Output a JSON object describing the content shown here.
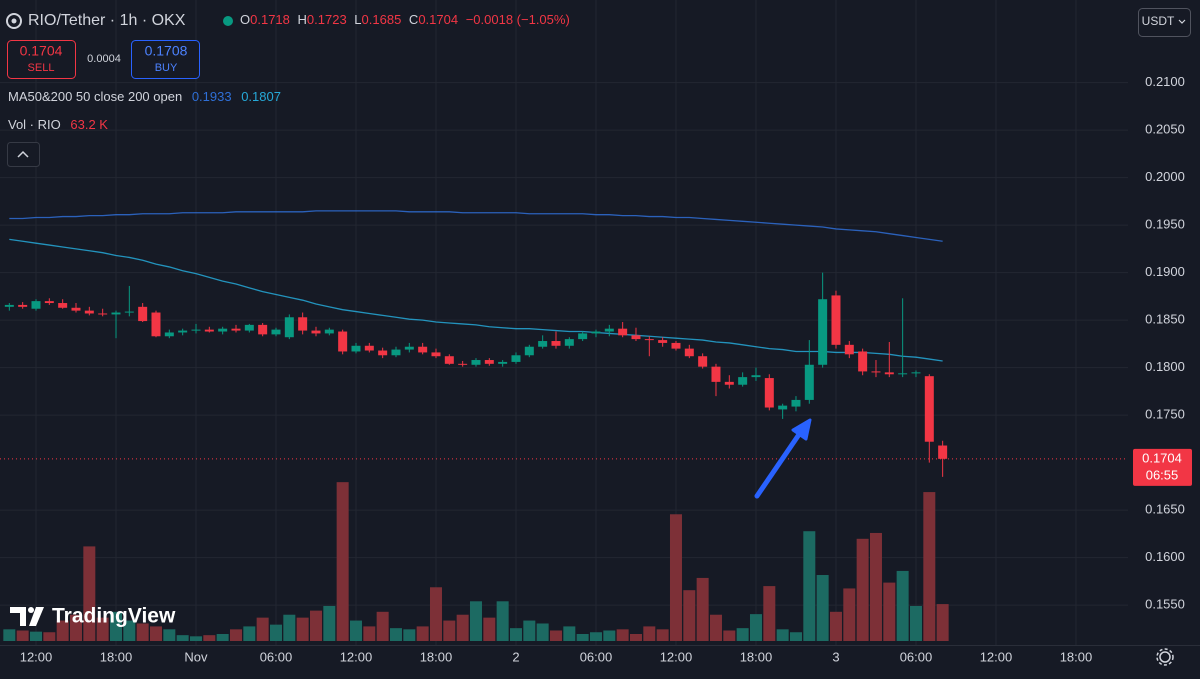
{
  "chart_data": {
    "type": "candlestick",
    "title": "RIO/Tether · 1h · OKX",
    "legend_labels": [
      "O",
      "H",
      "L",
      "C"
    ],
    "change": "−0.0018 (−1.05%)",
    "trade": {
      "sell_price": "0.1704",
      "sell": "SELL",
      "spread": "0.0004",
      "buy_price": "0.1708",
      "buy": "BUY"
    },
    "indicator_label": "MA50&200 50 close 200 open",
    "volume_label": "Vol · RIO",
    "volume_last_label": "63.2 K",
    "currency": "USDT",
    "countdown": "06:55",
    "watermark": "TradingView",
    "up_color": "#089981",
    "down_color": "#f23645",
    "volume_up_color": "#1c6a62",
    "volume_down_color": "#7d3037",
    "grid": true,
    "categories": [
      null,
      null,
      "12:00",
      null,
      null,
      null,
      null,
      null,
      "18:00",
      null,
      null,
      null,
      null,
      null,
      "Nov",
      null,
      null,
      null,
      null,
      null,
      "06:00",
      null,
      null,
      null,
      null,
      null,
      "12:00",
      null,
      null,
      null,
      null,
      null,
      "18:00",
      null,
      null,
      null,
      null,
      null,
      "2",
      null,
      null,
      null,
      null,
      null,
      "06:00",
      null,
      null,
      null,
      null,
      null,
      "12:00",
      null,
      null,
      null,
      null,
      null,
      "18:00",
      null,
      null,
      null,
      null,
      null,
      "3",
      null,
      null,
      null,
      null,
      null,
      "06:00",
      null,
      null,
      null,
      null,
      null,
      "12:00",
      null,
      null,
      null,
      null,
      null,
      "18:00"
    ],
    "ohlc": {
      "open": [
        0.1864,
        0.1866,
        0.1862,
        0.187,
        0.1868,
        0.1863,
        0.186,
        0.1857,
        0.1856,
        0.1858,
        0.1864,
        0.1858,
        0.1833,
        0.1837,
        0.1839,
        0.184,
        0.1838,
        0.1841,
        0.1839,
        0.1845,
        0.1835,
        0.1832,
        0.1853,
        0.1839,
        0.1836,
        0.1838,
        0.1817,
        0.1823,
        0.1818,
        0.1813,
        0.1819,
        0.1822,
        0.1816,
        0.1812,
        0.1804,
        0.1803,
        0.1808,
        0.1804,
        0.1806,
        0.1813,
        0.1822,
        0.1828,
        0.1823,
        0.183,
        0.1836,
        0.1838,
        0.1841,
        0.1834,
        0.183,
        0.1829,
        0.1826,
        0.182,
        0.1812,
        0.1801,
        0.1785,
        0.1782,
        0.179,
        0.1789,
        0.1756,
        0.1759,
        0.1766,
        0.1803,
        0.1876,
        0.1824,
        0.1817,
        0.1796,
        0.1795,
        0.1793,
        0.1794,
        0.1791,
        0.1718,
        null,
        null,
        null,
        null,
        null,
        null,
        null,
        null,
        null,
        null
      ],
      "high": [
        0.1868,
        0.1869,
        0.1872,
        0.1873,
        0.1872,
        0.1868,
        0.1864,
        0.1862,
        0.186,
        0.1886,
        0.1868,
        0.186,
        0.184,
        0.1841,
        0.1846,
        0.1843,
        0.1843,
        0.1845,
        0.1846,
        0.1847,
        0.1842,
        0.1856,
        0.1858,
        0.1843,
        0.1842,
        0.184,
        0.1826,
        0.1826,
        0.1821,
        0.1822,
        0.1826,
        0.1826,
        0.182,
        0.1814,
        0.1807,
        0.181,
        0.181,
        0.1808,
        0.1816,
        0.1824,
        0.1834,
        0.1838,
        0.1832,
        0.1838,
        0.184,
        0.1845,
        0.1848,
        0.1842,
        0.1833,
        0.1832,
        0.1828,
        0.1824,
        0.1815,
        0.1804,
        0.1792,
        0.1795,
        0.18,
        0.1793,
        0.1762,
        0.177,
        0.1829,
        0.19,
        0.1881,
        0.1828,
        0.182,
        0.1808,
        0.1827,
        0.1873,
        0.1797,
        0.1793,
        0.1723,
        null,
        null,
        null,
        null,
        null,
        null,
        null,
        null,
        null,
        null
      ],
      "low": [
        0.186,
        0.1862,
        0.186,
        0.1866,
        0.1862,
        0.1858,
        0.1855,
        0.1854,
        0.1831,
        0.1854,
        0.1848,
        0.1832,
        0.1831,
        0.1834,
        0.1836,
        0.1837,
        0.1835,
        0.1837,
        0.1837,
        0.1833,
        0.1833,
        0.183,
        0.1835,
        0.1833,
        0.1834,
        0.1814,
        0.1815,
        0.1816,
        0.181,
        0.1811,
        0.1816,
        0.1814,
        0.181,
        0.1803,
        0.1801,
        0.1801,
        0.1802,
        0.1801,
        0.1804,
        0.1811,
        0.182,
        0.182,
        0.182,
        0.1828,
        0.1832,
        0.1833,
        0.1832,
        0.1828,
        0.1812,
        0.1822,
        0.1818,
        0.181,
        0.1799,
        0.177,
        0.1778,
        0.178,
        0.1786,
        0.1755,
        0.1746,
        0.1754,
        0.1762,
        0.18,
        0.182,
        0.181,
        0.1792,
        0.179,
        0.179,
        0.179,
        0.179,
        0.17,
        0.1685,
        null,
        null,
        null,
        null,
        null,
        null,
        null,
        null,
        null,
        null
      ],
      "close": [
        0.1866,
        0.1864,
        0.187,
        0.1868,
        0.1863,
        0.186,
        0.1857,
        0.1856,
        0.1858,
        0.1859,
        0.1849,
        0.1833,
        0.1837,
        0.1839,
        0.184,
        0.1838,
        0.1841,
        0.1839,
        0.1845,
        0.1835,
        0.184,
        0.1853,
        0.1839,
        0.1836,
        0.184,
        0.1817,
        0.1823,
        0.1818,
        0.1813,
        0.1819,
        0.1822,
        0.1816,
        0.1812,
        0.1804,
        0.1803,
        0.1808,
        0.1804,
        0.1806,
        0.1813,
        0.1822,
        0.1828,
        0.1823,
        0.183,
        0.1836,
        0.1838,
        0.1841,
        0.1834,
        0.183,
        0.1829,
        0.1826,
        0.182,
        0.1812,
        0.1801,
        0.1785,
        0.1782,
        0.179,
        0.1792,
        0.1758,
        0.176,
        0.1766,
        0.1803,
        0.1872,
        0.1824,
        0.1814,
        0.1796,
        0.1795,
        0.1793,
        0.1794,
        0.1795,
        0.1722,
        0.1704,
        null,
        null,
        null,
        null,
        null,
        null,
        null,
        null,
        null,
        null
      ]
    },
    "volume": {
      "values": [
        20000,
        18000,
        16000,
        15000,
        35000,
        45000,
        162000,
        40000,
        50000,
        35000,
        30000,
        25000,
        20000,
        10000,
        8000,
        10000,
        12000,
        20000,
        25000,
        40000,
        28000,
        45000,
        40000,
        52000,
        60000,
        272000,
        35000,
        25000,
        50000,
        22000,
        20000,
        25000,
        92000,
        35000,
        45000,
        68000,
        40000,
        68000,
        22000,
        35000,
        30000,
        18000,
        25000,
        12000,
        15000,
        18000,
        20000,
        12000,
        25000,
        20000,
        217000,
        87000,
        108000,
        45000,
        18000,
        22000,
        46000,
        94000,
        20000,
        15000,
        188000,
        113000,
        50000,
        90000,
        175000,
        185000,
        100000,
        120000,
        60000,
        255000,
        63200,
        null,
        null,
        null,
        null,
        null,
        null,
        null,
        null,
        null,
        null
      ],
      "ylim": [
        0,
        500000
      ]
    },
    "series": [
      {
        "name": "MA200",
        "color": "#2f6fd6",
        "values": [
          0.1957,
          0.1957,
          0.1958,
          0.1958,
          0.1959,
          0.1959,
          0.196,
          0.196,
          0.1961,
          0.1961,
          0.1962,
          0.1962,
          0.1962,
          0.1963,
          0.1963,
          0.1963,
          0.1963,
          0.1964,
          0.1964,
          0.1964,
          0.1964,
          0.1964,
          0.1964,
          0.1965,
          0.1965,
          0.1965,
          0.1965,
          0.1965,
          0.1965,
          0.1965,
          0.1964,
          0.1964,
          0.1964,
          0.1964,
          0.1963,
          0.1963,
          0.1963,
          0.1963,
          0.1963,
          0.1962,
          0.1962,
          0.1962,
          0.1962,
          0.1962,
          0.1961,
          0.1961,
          0.196,
          0.196,
          0.1959,
          0.1959,
          0.1958,
          0.1958,
          0.1957,
          0.1956,
          0.1955,
          0.1954,
          0.1953,
          0.1952,
          0.1951,
          0.195,
          0.1949,
          0.1948,
          0.1946,
          0.1945,
          0.1944,
          0.1943,
          0.1941,
          0.1939,
          0.1937,
          0.1935,
          0.1933,
          null,
          null,
          null,
          null,
          null,
          null,
          null,
          null,
          null,
          null
        ]
      },
      {
        "name": "MA50",
        "color": "#26a9d8",
        "values": [
          0.1935,
          0.1933,
          0.1931,
          0.1929,
          0.1927,
          0.1925,
          0.1923,
          0.1921,
          0.1918,
          0.1916,
          0.1913,
          0.1909,
          0.1906,
          0.1902,
          0.1899,
          0.1895,
          0.1891,
          0.1888,
          0.1884,
          0.188,
          0.1877,
          0.1874,
          0.1871,
          0.1867,
          0.1864,
          0.1861,
          0.1859,
          0.1857,
          0.1855,
          0.1853,
          0.1851,
          0.185,
          0.1848,
          0.1847,
          0.1846,
          0.1845,
          0.1843,
          0.1842,
          0.1841,
          0.1841,
          0.184,
          0.1839,
          0.1838,
          0.1838,
          0.1837,
          0.1836,
          0.1835,
          0.1834,
          0.1833,
          0.1832,
          0.1831,
          0.183,
          0.1829,
          0.1827,
          0.1826,
          0.1824,
          0.1822,
          0.182,
          0.1819,
          0.1817,
          0.1817,
          0.1817,
          0.1816,
          0.1816,
          0.1816,
          0.1815,
          0.1814,
          0.1812,
          0.1811,
          0.1809,
          0.1807,
          null,
          null,
          null,
          null,
          null,
          null,
          null,
          null,
          null,
          null
        ]
      }
    ],
    "ylim": [
      0.1508,
      0.2187
    ],
    "yticks": [
      {
        "value": 0.21,
        "label": "0.2100"
      },
      {
        "value": 0.205,
        "label": "0.2050"
      },
      {
        "value": 0.2,
        "label": "0.2000"
      },
      {
        "value": 0.195,
        "label": "0.1950"
      },
      {
        "value": 0.19,
        "label": "0.1900"
      },
      {
        "value": 0.185,
        "label": "0.1850"
      },
      {
        "value": 0.18,
        "label": "0.1800"
      },
      {
        "value": 0.175,
        "label": "0.1750"
      },
      {
        "value": 0.165,
        "label": "0.1650"
      },
      {
        "value": 0.16,
        "label": "0.1600"
      },
      {
        "value": 0.155,
        "label": "0.1550"
      }
    ]
  }
}
